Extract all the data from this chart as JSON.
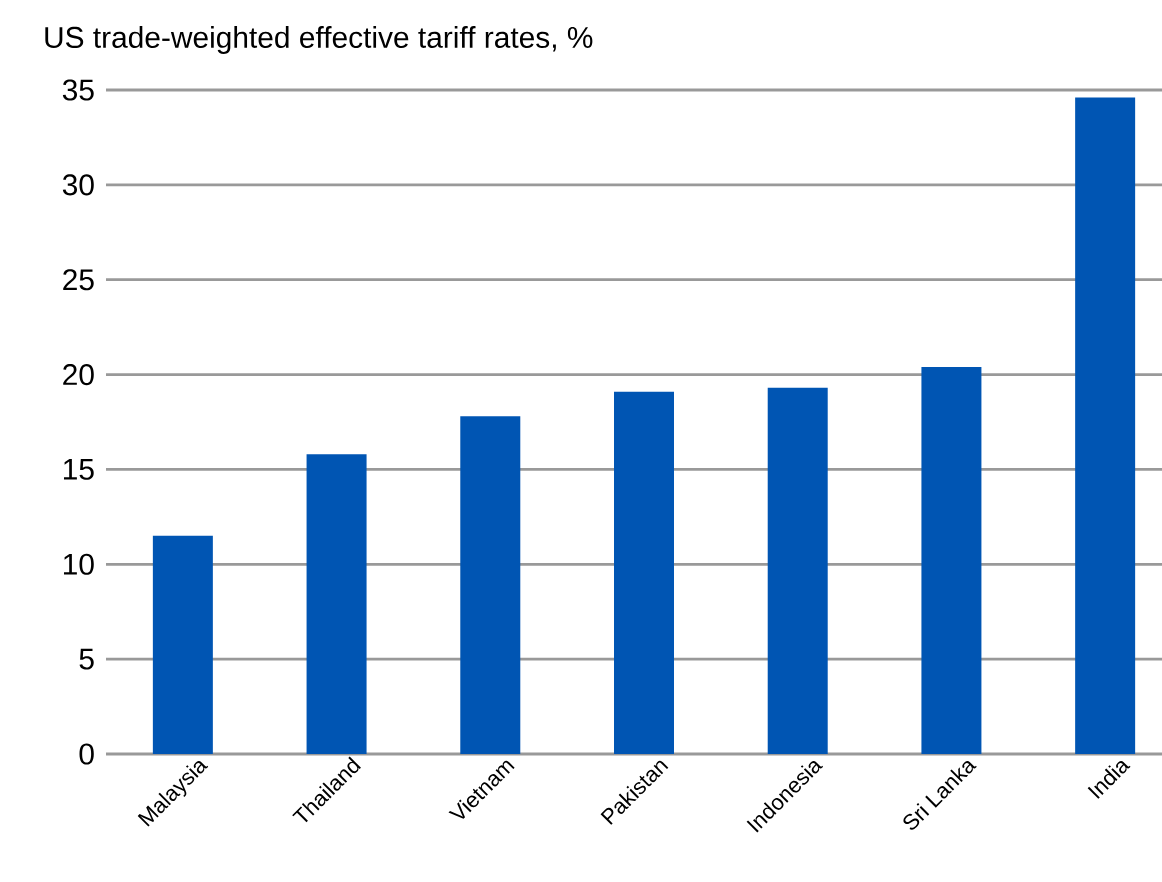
{
  "chart_data": {
    "type": "bar",
    "title": "US trade-weighted effective tariff rates, %",
    "categories": [
      "Malaysia",
      "Thailand",
      "Vietnam",
      "Pakistan",
      "Indonesia",
      "Sri Lanka",
      "India"
    ],
    "values": [
      11.5,
      15.8,
      17.8,
      19.1,
      19.3,
      20.4,
      34.6
    ],
    "color": "#0055b3",
    "ylim": [
      0,
      35
    ],
    "yticks": [
      0,
      5,
      10,
      15,
      20,
      25,
      30,
      35
    ],
    "grid": "y"
  }
}
